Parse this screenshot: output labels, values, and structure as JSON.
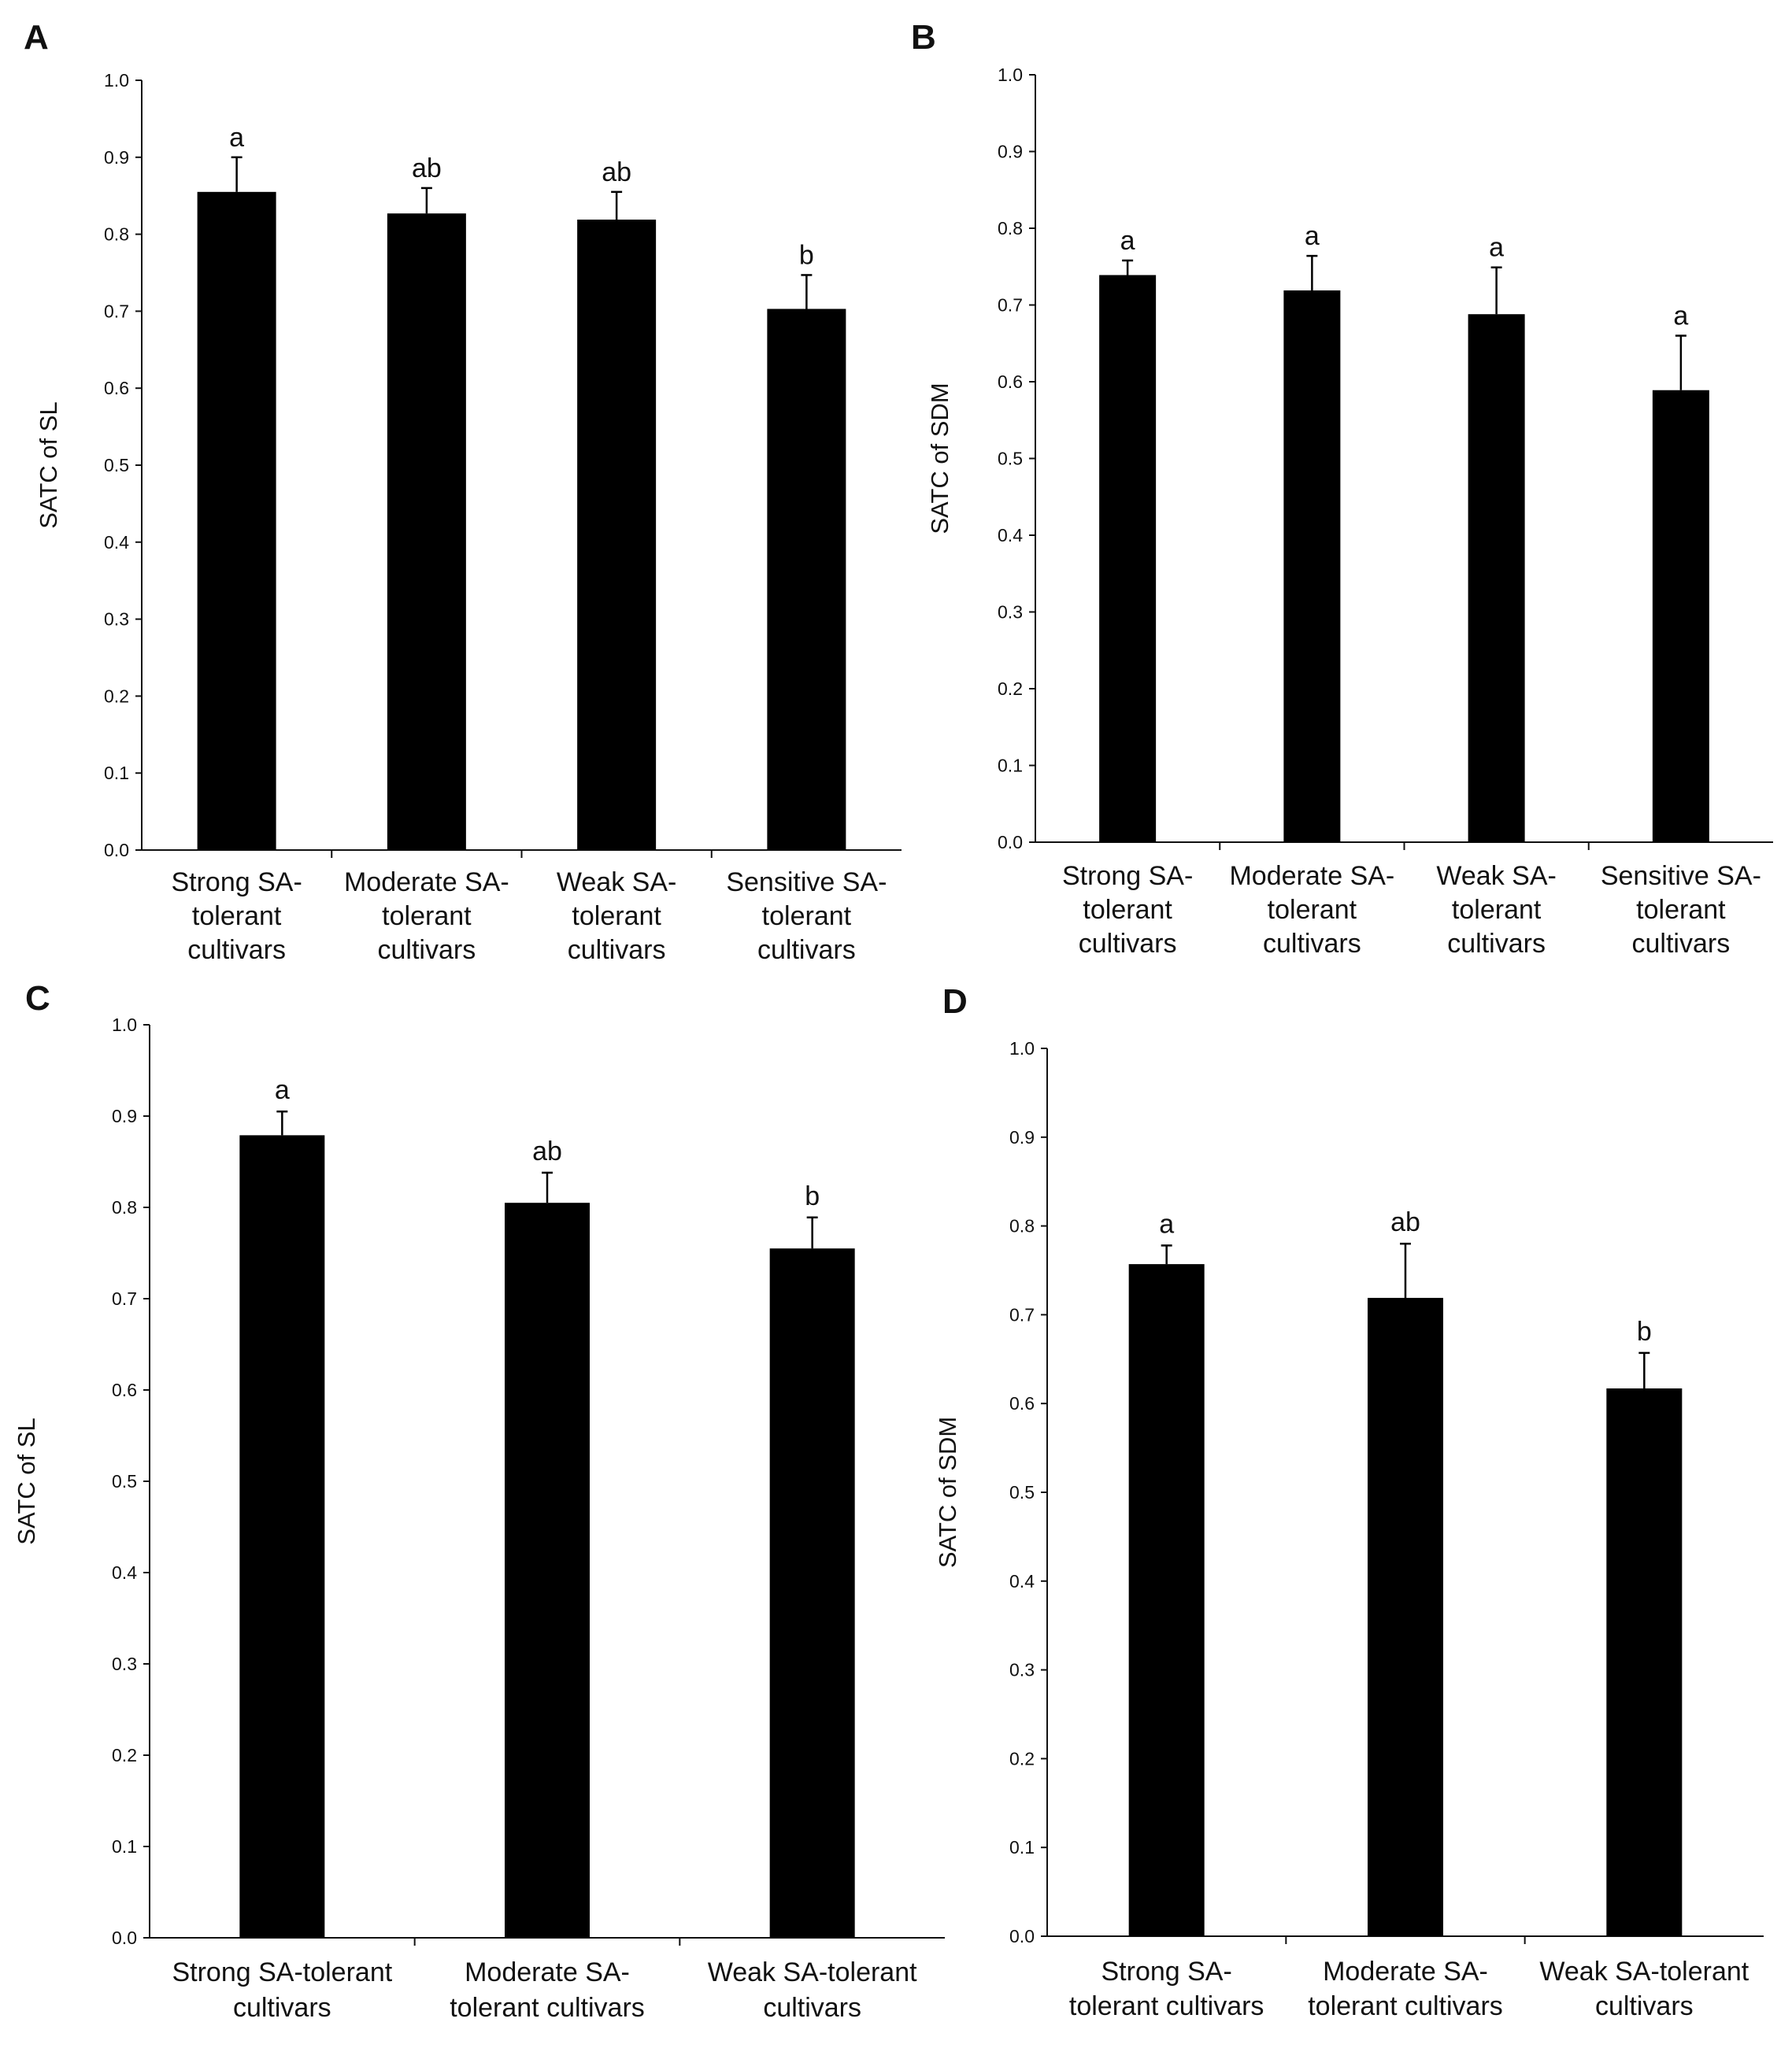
{
  "chart_data": [
    {
      "panel": "A",
      "type": "bar",
      "ylabel": "SATC of SL",
      "xlabel": "",
      "ylim": [
        0,
        1.0
      ],
      "yticks": [
        "0.0",
        "0.1",
        "0.2",
        "0.3",
        "0.4",
        "0.5",
        "0.6",
        "0.7",
        "0.8",
        "0.9",
        "1.0"
      ],
      "categories": [
        [
          "Strong SA-",
          "tolerant",
          "cultivars"
        ],
        [
          "Moderate SA-",
          "tolerant",
          "cultivars"
        ],
        [
          "Weak SA-",
          "tolerant",
          "cultivars"
        ],
        [
          "Sensitive SA-",
          "tolerant",
          "cultivars"
        ]
      ],
      "values": [
        0.855,
        0.827,
        0.819,
        0.703
      ],
      "errors": [
        0.045,
        0.033,
        0.036,
        0.044
      ],
      "significance": [
        "a",
        "ab",
        "ab",
        "b"
      ]
    },
    {
      "panel": "B",
      "type": "bar",
      "ylabel": "SATC of SDM",
      "xlabel": "",
      "ylim": [
        0,
        1.0
      ],
      "yticks": [
        "0.0",
        "0.1",
        "0.2",
        "0.3",
        "0.4",
        "0.5",
        "0.6",
        "0.7",
        "0.8",
        "0.9",
        "1.0"
      ],
      "categories": [
        [
          "Strong SA-",
          "tolerant",
          "cultivars"
        ],
        [
          "Moderate SA-",
          "tolerant",
          "cultivars"
        ],
        [
          "Weak SA-",
          "tolerant",
          "cultivars"
        ],
        [
          "Sensitive SA-",
          "tolerant",
          "cultivars"
        ]
      ],
      "values": [
        0.739,
        0.719,
        0.688,
        0.589
      ],
      "errors": [
        0.019,
        0.045,
        0.061,
        0.071
      ],
      "significance": [
        "a",
        "a",
        "a",
        "a"
      ]
    },
    {
      "panel": "C",
      "type": "bar",
      "ylabel": "SATC of SL",
      "xlabel": "",
      "ylim": [
        0,
        1.0
      ],
      "yticks": [
        "0.0",
        "0.1",
        "0.2",
        "0.3",
        "0.4",
        "0.5",
        "0.6",
        "0.7",
        "0.8",
        "0.9",
        "1.0"
      ],
      "categories": [
        [
          "Strong SA-tolerant",
          "cultivars"
        ],
        [
          "Moderate SA-",
          "tolerant cultivars"
        ],
        [
          "Weak SA-tolerant",
          "cultivars"
        ]
      ],
      "values": [
        0.879,
        0.805,
        0.755
      ],
      "errors": [
        0.026,
        0.033,
        0.034
      ],
      "significance": [
        "a",
        "ab",
        "b"
      ]
    },
    {
      "panel": "D",
      "type": "bar",
      "ylabel": "SATC of SDM",
      "xlabel": "",
      "ylim": [
        0,
        1.0
      ],
      "yticks": [
        "0.0",
        "0.1",
        "0.2",
        "0.3",
        "0.4",
        "0.5",
        "0.6",
        "0.7",
        "0.8",
        "0.9",
        "1.0"
      ],
      "categories": [
        [
          "Strong SA-",
          "tolerant  cultivars"
        ],
        [
          "Moderate SA-",
          "tolerant cultivars"
        ],
        [
          "Weak SA-tolerant",
          "cultivars"
        ]
      ],
      "values": [
        0.757,
        0.719,
        0.617
      ],
      "errors": [
        0.021,
        0.061,
        0.04
      ],
      "significance": [
        "a",
        "ab",
        "b"
      ]
    }
  ]
}
